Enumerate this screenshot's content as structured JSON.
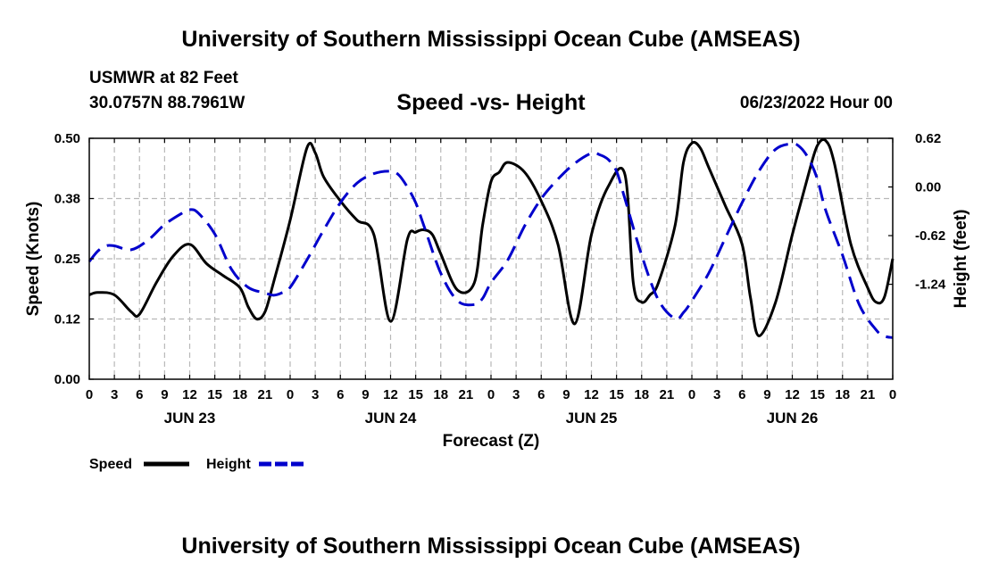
{
  "header": {
    "title": "University of Southern Mississippi Ocean Cube (AMSEAS)",
    "station": "USMWR at 82 Feet",
    "coordinates": "30.0757N  88.7961W",
    "run_time": "06/23/2022 Hour 00"
  },
  "footer": {
    "title": "University of Southern Mississippi Ocean Cube (AMSEAS)"
  },
  "chart_data": {
    "type": "line",
    "title": "Speed -vs- Height",
    "xlabel": "Forecast (Z)",
    "ylabel": "Speed (Knots)",
    "y2label": "Height (feet)",
    "xlim": [
      0,
      96
    ],
    "ylim": [
      0,
      0.5
    ],
    "y2lim": [
      -2.45,
      0.62
    ],
    "x_ticks": [
      0,
      3,
      6,
      9,
      12,
      15,
      18,
      21,
      24,
      27,
      30,
      33,
      36,
      39,
      42,
      45,
      48,
      51,
      54,
      57,
      60,
      63,
      66,
      69,
      72,
      75,
      78,
      81,
      84,
      87,
      90,
      93,
      96
    ],
    "x_tick_labels": [
      "0",
      "3",
      "6",
      "9",
      "12",
      "15",
      "18",
      "21",
      "0",
      "3",
      "6",
      "9",
      "12",
      "15",
      "18",
      "21",
      "0",
      "3",
      "6",
      "9",
      "12",
      "15",
      "18",
      "21",
      "0",
      "3",
      "6",
      "9",
      "12",
      "15",
      "18",
      "21",
      "0"
    ],
    "date_labels": [
      {
        "x": 12,
        "label": "JUN 23"
      },
      {
        "x": 36,
        "label": "JUN 24"
      },
      {
        "x": 60,
        "label": "JUN 25"
      },
      {
        "x": 84,
        "label": "JUN 26"
      }
    ],
    "y_ticks": [
      0,
      0.125,
      0.25,
      0.375,
      0.5
    ],
    "y_tick_labels": [
      "0.00",
      "0.12",
      "0.25",
      "0.38",
      "0.50"
    ],
    "y2_ticks": [
      -1.24,
      -0.62,
      0.0,
      0.62
    ],
    "y2_tick_labels": [
      "-1.24",
      "-0.62",
      "0.00",
      "0.62"
    ],
    "grid": true,
    "series": [
      {
        "name": "Speed",
        "axis": "left",
        "color": "#000000",
        "dash": "solid",
        "x": [
          0,
          1,
          3,
          5,
          6,
          8,
          10,
          12,
          14,
          16,
          18,
          19,
          20,
          21,
          22,
          24,
          26,
          27,
          28,
          30,
          32,
          34,
          36,
          38,
          39,
          40,
          41,
          42,
          44,
          46,
          47,
          48,
          49,
          50,
          52,
          54,
          56,
          58,
          60,
          62,
          64,
          65,
          66,
          67,
          68,
          70,
          71,
          72,
          73,
          74,
          76,
          78,
          79,
          80,
          82,
          84,
          86,
          87,
          88,
          89,
          91,
          93,
          94,
          95,
          96
        ],
        "values": [
          0.175,
          0.18,
          0.175,
          0.14,
          0.135,
          0.2,
          0.255,
          0.28,
          0.24,
          0.215,
          0.19,
          0.15,
          0.125,
          0.14,
          0.2,
          0.33,
          0.48,
          0.47,
          0.42,
          0.37,
          0.33,
          0.3,
          0.12,
          0.29,
          0.305,
          0.31,
          0.3,
          0.26,
          0.185,
          0.2,
          0.32,
          0.41,
          0.43,
          0.45,
          0.43,
          0.37,
          0.28,
          0.115,
          0.3,
          0.4,
          0.425,
          0.2,
          0.16,
          0.175,
          0.2,
          0.32,
          0.45,
          0.49,
          0.48,
          0.44,
          0.36,
          0.28,
          0.17,
          0.09,
          0.16,
          0.3,
          0.43,
          0.485,
          0.495,
          0.45,
          0.28,
          0.19,
          0.16,
          0.17,
          0.25
        ]
      },
      {
        "name": "Height",
        "axis": "right",
        "color": "#0000cc",
        "dash": "dashed",
        "x": [
          0,
          1,
          2,
          3,
          5,
          7,
          9,
          11,
          12,
          13,
          15,
          17,
          19,
          21,
          22,
          23,
          24,
          26,
          28,
          30,
          32,
          34,
          36,
          37,
          38,
          39,
          40,
          42,
          44,
          46,
          47,
          48,
          50,
          52,
          54,
          56,
          58,
          60,
          61,
          62,
          63,
          64,
          66,
          68,
          70,
          71,
          72,
          74,
          76,
          78,
          80,
          82,
          84,
          85,
          86,
          87,
          88,
          90,
          92,
          94,
          95,
          96
        ],
        "values": [
          -0.95,
          -0.82,
          -0.75,
          -0.75,
          -0.8,
          -0.68,
          -0.48,
          -0.34,
          -0.29,
          -0.33,
          -0.6,
          -1.05,
          -1.28,
          -1.35,
          -1.38,
          -1.35,
          -1.28,
          -0.93,
          -0.55,
          -0.2,
          0.05,
          0.17,
          0.2,
          0.15,
          0.0,
          -0.2,
          -0.5,
          -1.1,
          -1.45,
          -1.5,
          -1.42,
          -1.22,
          -0.93,
          -0.5,
          -0.15,
          0.1,
          0.3,
          0.43,
          0.41,
          0.35,
          0.2,
          -0.15,
          -0.87,
          -1.44,
          -1.68,
          -1.6,
          -1.45,
          -1.1,
          -0.65,
          -0.2,
          0.2,
          0.48,
          0.55,
          0.5,
          0.35,
          0.1,
          -0.3,
          -0.87,
          -1.5,
          -1.82,
          -1.9,
          -1.92
        ]
      }
    ],
    "legend": [
      {
        "label": "Speed",
        "color": "#000000",
        "dash": "solid"
      },
      {
        "label": "Height",
        "color": "#0000cc",
        "dash": "dashed"
      }
    ],
    "legend_position": "bottom-left"
  }
}
